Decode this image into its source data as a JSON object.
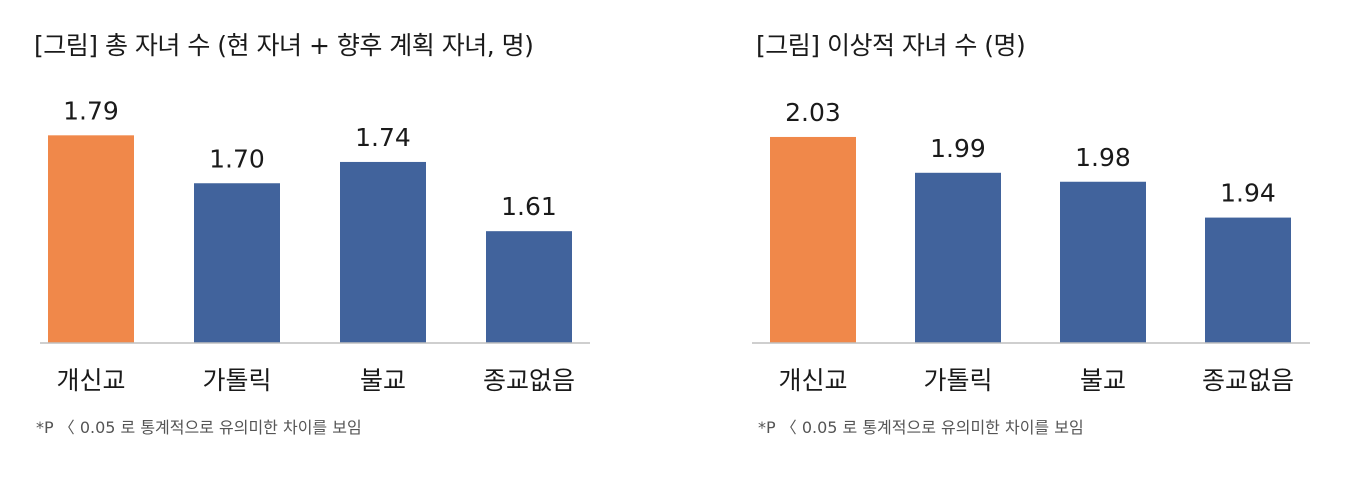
{
  "colors": {
    "highlight": "#F0884A",
    "bar": "#41639C",
    "axis": "#BFBFBF",
    "text": "#1A1A1A",
    "footnote": "#555555"
  },
  "chart_data": [
    {
      "type": "bar",
      "title": "[그림] 총 자녀 수 (현 자녀 + 향후 계획 자녀, 명)",
      "categories": [
        "개신교",
        "가톨릭",
        "불교",
        "종교없음"
      ],
      "values": [
        1.79,
        1.7,
        1.74,
        1.61
      ],
      "data_labels": [
        "1.79",
        "1.70",
        "1.74",
        "1.61"
      ],
      "highlight_index": 0,
      "ylim": [
        1.4,
        1.8
      ],
      "grid": false,
      "legend": "none",
      "footnote": "*P 〈 0.05 로 통계적으로 유의미한 차이를 보임"
    },
    {
      "type": "bar",
      "title": "[그림] 이상적 자녀 수 (명)",
      "categories": [
        "개신교",
        "가톨릭",
        "불교",
        "종교없음"
      ],
      "values": [
        2.03,
        1.99,
        1.98,
        1.94
      ],
      "data_labels": [
        "2.03",
        "1.99",
        "1.98",
        "1.94"
      ],
      "highlight_index": 0,
      "ylim": [
        1.8,
        2.04
      ],
      "grid": false,
      "legend": "none",
      "footnote": "*P 〈 0.05 로 통계적으로 유의미한 차이를 보임"
    }
  ]
}
